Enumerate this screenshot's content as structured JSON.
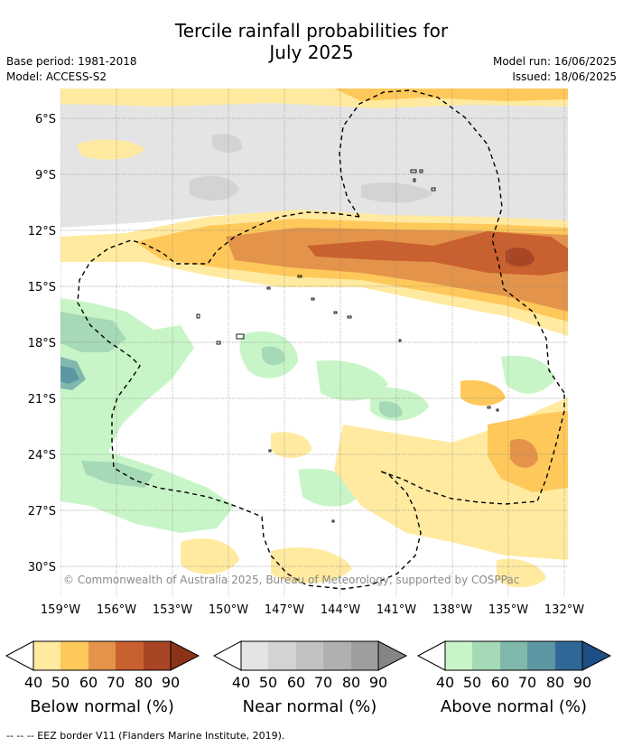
{
  "title_line1": "Tercile rainfall probabilities for",
  "title_line2": "July 2025",
  "meta": {
    "base_period": "Base period: 1981-2018",
    "model": "Model: ACCESS-S2",
    "model_run": "Model run: 16/06/2025",
    "issued": "Issued: 18/06/2025"
  },
  "copyright": "© Commonwealth of Australia 2025, Bureau of Meteorology, supported by COSPPac",
  "lat_labels": [
    "6°S",
    "9°S",
    "12°S",
    "15°S",
    "18°S",
    "21°S",
    "24°S",
    "27°S",
    "30°S"
  ],
  "lon_labels": [
    "159°W",
    "156°W",
    "153°W",
    "150°W",
    "147°W",
    "144°W",
    "141°W",
    "138°W",
    "135°W",
    "132°W"
  ],
  "legends": [
    {
      "title": "Below normal (%)",
      "ticks": [
        "40",
        "50",
        "60",
        "70",
        "80",
        "90"
      ],
      "colors": [
        "#ffeaa0",
        "#ffc85a",
        "#e3944a",
        "#c9602f",
        "#a84525",
        "#8b3218"
      ]
    },
    {
      "title": "Near normal (%)",
      "ticks": [
        "40",
        "50",
        "60",
        "70",
        "80",
        "90"
      ],
      "colors": [
        "#e4e4e4",
        "#d3d3d3",
        "#c2c2c2",
        "#b0b0b0",
        "#9e9e9e",
        "#858585"
      ]
    },
    {
      "title": "Above normal (%)",
      "ticks": [
        "40",
        "50",
        "60",
        "70",
        "80",
        "90"
      ],
      "colors": [
        "#c8f5c8",
        "#a6d9b6",
        "#80b9ac",
        "#5b96a2",
        "#2f6796",
        "#1d4f86"
      ]
    }
  ],
  "footer": "--  --  -- EEZ border V11 (Flanders Marine Institute, 2019)."
}
